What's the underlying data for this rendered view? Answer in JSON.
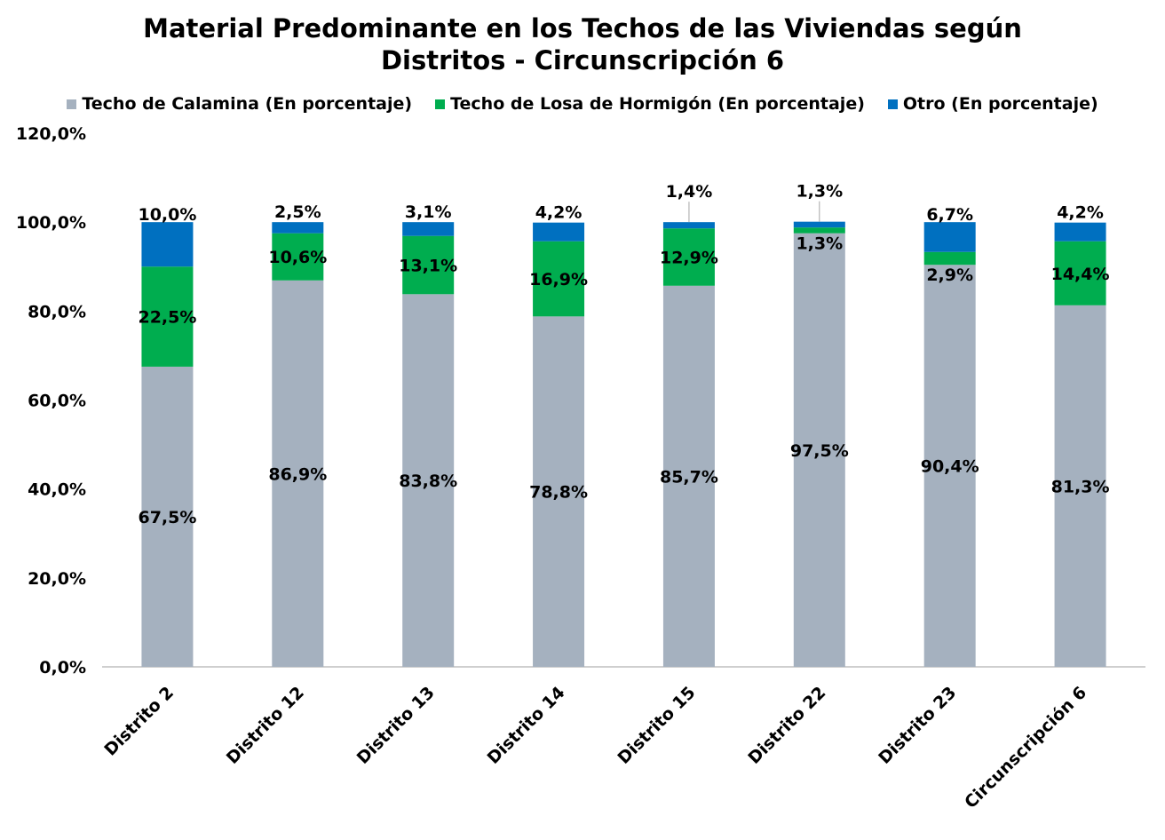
{
  "chart_data": {
    "type": "bar",
    "stacked": true,
    "title_line1": "Material Predominante en los Techos de las Viviendas según",
    "title_line2": "Distritos - Circunscripción 6",
    "categories": [
      "Distrito 2",
      "Distrito 12",
      "Distrito 13",
      "Distrito 14",
      "Distrito 15",
      "Distrito 22",
      "Distrito 23",
      "Circunscripción 6"
    ],
    "series": [
      {
        "name": "Techo de Calamina (En porcentaje)",
        "color": "#a5b1bf",
        "values": [
          67.5,
          86.9,
          83.8,
          78.8,
          85.7,
          97.5,
          90.4,
          81.3
        ],
        "labels": [
          "67,5%",
          "86,9%",
          "83,8%",
          "78,8%",
          "85,7%",
          "97,5%",
          "90,4%",
          "81,3%"
        ]
      },
      {
        "name": "Techo de Losa de Hormigón (En porcentaje)",
        "color": "#00ad4f",
        "values": [
          22.5,
          10.6,
          13.1,
          16.9,
          12.9,
          1.3,
          2.9,
          14.4
        ],
        "labels": [
          "22,5%",
          "10,6%",
          "13,1%",
          "16,9%",
          "12,9%",
          "1,3%",
          "2,9%",
          "14,4%"
        ]
      },
      {
        "name": "Otro (En porcentaje)",
        "color": "#0070c0",
        "values": [
          10.0,
          2.5,
          3.1,
          4.2,
          1.4,
          1.3,
          6.7,
          4.2
        ],
        "labels": [
          "10,0%",
          "2,5%",
          "3,1%",
          "4,2%",
          "1,4%",
          "1,3%",
          "6,7%",
          "4,2%"
        ]
      }
    ],
    "ylim": [
      0,
      120
    ],
    "yticks": [
      0,
      20,
      40,
      60,
      80,
      100,
      120
    ],
    "ytick_labels": [
      "0,0%",
      "20,0%",
      "40,0%",
      "60,0%",
      "80,0%",
      "100,0%",
      "120,0%"
    ],
    "legend_position": "top",
    "grid": false
  }
}
